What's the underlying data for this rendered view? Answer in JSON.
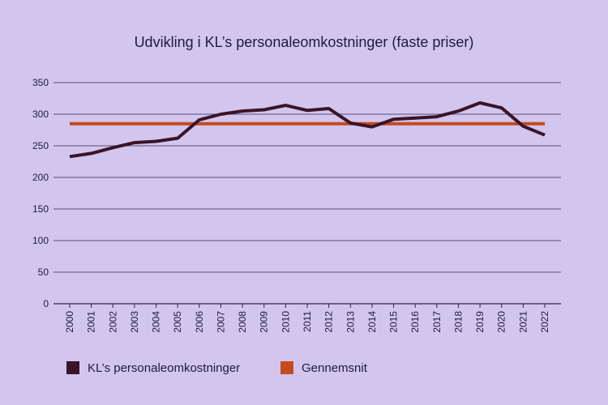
{
  "chart_data": {
    "type": "line",
    "title": "Udvikling i KL’s personaleomkostninger (faste priser)",
    "xlabel": "",
    "ylabel": "",
    "ylim": [
      0,
      350
    ],
    "yticks": [
      0,
      50,
      100,
      150,
      200,
      250,
      300,
      350
    ],
    "grid": true,
    "legend_position": "bottom-left",
    "categories": [
      "2000",
      "2001",
      "2002",
      "2003",
      "2004",
      "2005",
      "2006",
      "2007",
      "2008",
      "2009",
      "2010",
      "2011",
      "2012",
      "2013",
      "2014",
      "2015",
      "2016",
      "2017",
      "2018",
      "2019",
      "2020",
      "2021",
      "2022"
    ],
    "series": [
      {
        "name": "KL’s personaleomkostninger",
        "color": "#3a1428",
        "values": [
          233,
          238,
          247,
          255,
          257,
          262,
          291,
          300,
          305,
          307,
          314,
          306,
          309,
          286,
          280,
          292,
          294,
          296,
          305,
          318,
          310,
          281,
          267
        ]
      },
      {
        "name": "Gennemsnit",
        "color": "#c44b1c",
        "values": [
          285,
          285,
          285,
          285,
          285,
          285,
          285,
          285,
          285,
          285,
          285,
          285,
          285,
          285,
          285,
          285,
          285,
          285,
          285,
          285,
          285,
          285,
          285
        ]
      }
    ],
    "colors": {
      "background": "#d3c6ee",
      "grid": "#2a2550",
      "text": "#1f1a3d"
    }
  }
}
